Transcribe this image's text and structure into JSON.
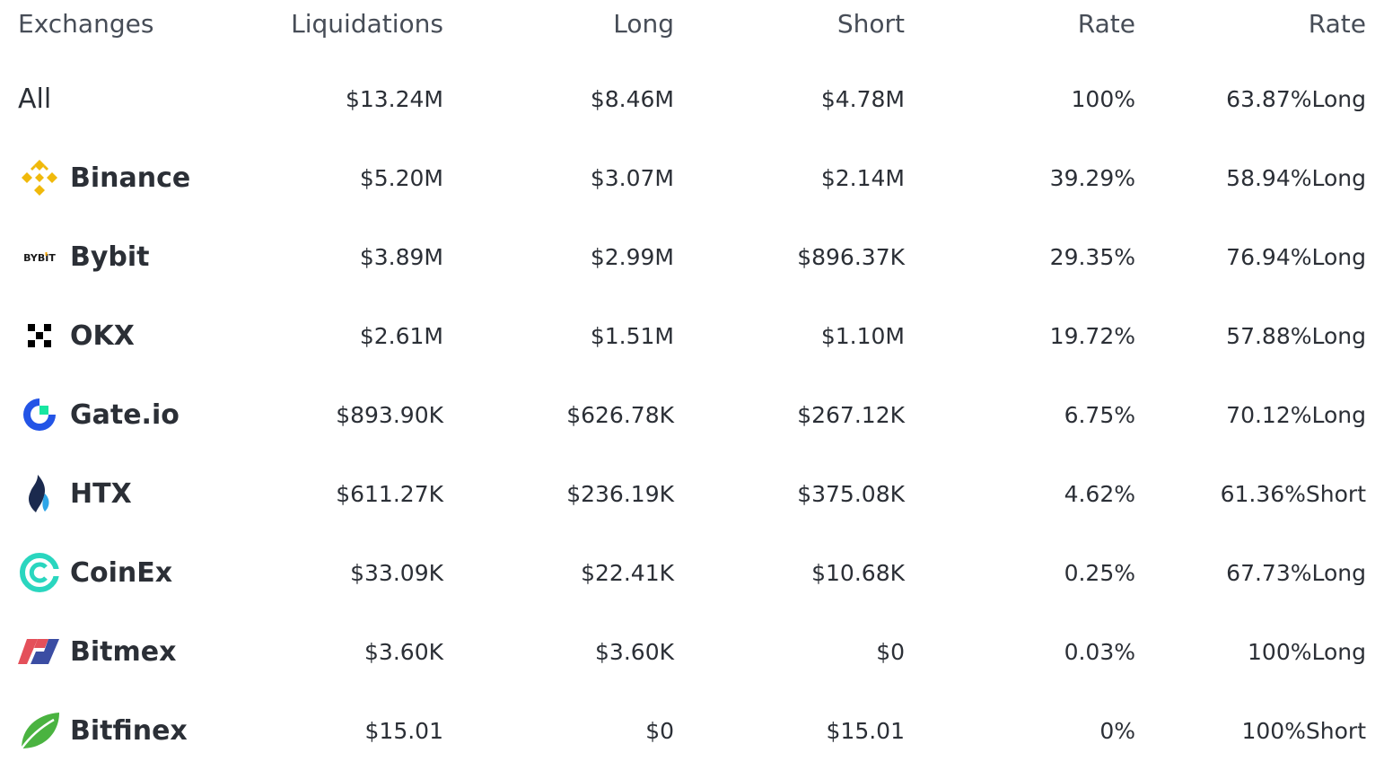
{
  "headers": {
    "exchanges": "Exchanges",
    "liquidations": "Liquidations",
    "long": "Long",
    "short": "Short",
    "rate": "Rate",
    "rate2": "Rate"
  },
  "rows": [
    {
      "name": "All",
      "liquidations": "$13.24M",
      "long": "$8.46M",
      "short": "$4.78M",
      "rate": "100%",
      "side_rate": "63.87%Long",
      "side": "long"
    },
    {
      "name": "Binance",
      "icon": "binance-logo-icon",
      "liquidations": "$5.20M",
      "long": "$3.07M",
      "short": "$2.14M",
      "rate": "39.29%",
      "side_rate": "58.94%Long",
      "side": "long"
    },
    {
      "name": "Bybit",
      "icon": "bybit-logo-icon",
      "logo_text": "BYBIT",
      "liquidations": "$3.89M",
      "long": "$2.99M",
      "short": "$896.37K",
      "rate": "29.35%",
      "side_rate": "76.94%Long",
      "side": "long"
    },
    {
      "name": "OKX",
      "icon": "okx-logo-icon",
      "liquidations": "$2.61M",
      "long": "$1.51M",
      "short": "$1.10M",
      "rate": "19.72%",
      "side_rate": "57.88%Long",
      "side": "long"
    },
    {
      "name": "Gate.io",
      "icon": "gateio-logo-icon",
      "liquidations": "$893.90K",
      "long": "$626.78K",
      "short": "$267.12K",
      "rate": "6.75%",
      "side_rate": "70.12%Long",
      "side": "long"
    },
    {
      "name": "HTX",
      "icon": "htx-logo-icon",
      "liquidations": "$611.27K",
      "long": "$236.19K",
      "short": "$375.08K",
      "rate": "4.62%",
      "side_rate": "61.36%Short",
      "side": "short"
    },
    {
      "name": "CoinEx",
      "icon": "coinex-logo-icon",
      "liquidations": "$33.09K",
      "long": "$22.41K",
      "short": "$10.68K",
      "rate": "0.25%",
      "side_rate": "67.73%Long",
      "side": "long"
    },
    {
      "name": "Bitmex",
      "icon": "bitmex-logo-icon",
      "liquidations": "$3.60K",
      "long": "$3.60K",
      "short": "$0",
      "rate": "0.03%",
      "side_rate": "100%Long",
      "side": "long"
    },
    {
      "name": "Bitfinex",
      "icon": "bitfinex-logo-icon",
      "liquidations": "$15.01",
      "long": "$0",
      "short": "$15.01",
      "rate": "0%",
      "side_rate": "100%Short",
      "side": "short"
    }
  ],
  "colors": {
    "long": "#2aa383",
    "short": "#e0394c",
    "binance": "#f0b90b",
    "gateio": "#2354e6",
    "htx": "#1b2a4e",
    "coinex": "#2ad6bf",
    "bitmex_red": "#e4505a",
    "bitmex_blue": "#3b4da3",
    "bitfinex": "#4ab340"
  }
}
